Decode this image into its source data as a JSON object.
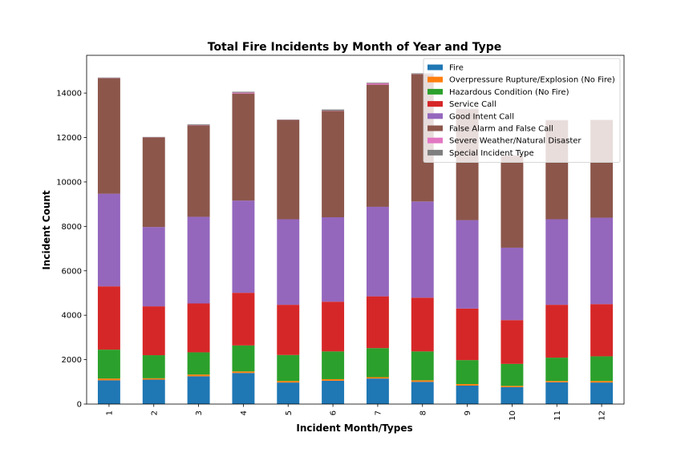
{
  "chart_data": {
    "type": "bar",
    "stacked": true,
    "title": "Total Fire Incidents by Month of Year and Type",
    "xlabel": "Incident Month/Types",
    "ylabel": "Incident Count",
    "ylim": [
      0,
      15700
    ],
    "yticks": [
      0,
      2000,
      4000,
      6000,
      8000,
      10000,
      12000,
      14000
    ],
    "ytick_labels": [
      "0",
      "2000",
      "4000",
      "6000",
      "8000",
      "10000",
      "12000",
      "14000"
    ],
    "categories": [
      "1",
      "2",
      "3",
      "4",
      "5",
      "6",
      "7",
      "8",
      "9",
      "10",
      "11",
      "12"
    ],
    "legend_position": "top-right",
    "series": [
      {
        "name": "Fire",
        "color": "#1f77b4",
        "values": [
          1070,
          1100,
          1250,
          1400,
          970,
          1050,
          1150,
          1000,
          830,
          760,
          980,
          970
        ]
      },
      {
        "name": "Overpressure Rupture/Explosion (No Fire)",
        "color": "#ff7f0e",
        "values": [
          80,
          60,
          80,
          70,
          70,
          70,
          60,
          70,
          70,
          60,
          60,
          70
        ]
      },
      {
        "name": "Hazardous Condition (No Fire)",
        "color": "#2ca02c",
        "values": [
          1300,
          1040,
          1000,
          1170,
          1170,
          1250,
          1310,
          1300,
          1080,
          990,
          1050,
          1110
        ]
      },
      {
        "name": "Service Call",
        "color": "#d62728",
        "values": [
          2850,
          2200,
          2200,
          2370,
          2260,
          2240,
          2330,
          2420,
          2320,
          1970,
          2380,
          2350
        ]
      },
      {
        "name": "Good Intent Call",
        "color": "#9467bd",
        "values": [
          4170,
          3570,
          3900,
          4150,
          3850,
          3800,
          4030,
          4330,
          3980,
          3260,
          3850,
          3890
        ]
      },
      {
        "name": "False Alarm and False Call",
        "color": "#8c564b",
        "values": [
          5200,
          4040,
          4120,
          4820,
          4470,
          4790,
          5500,
          5730,
          4990,
          4140,
          4450,
          4390
        ]
      },
      {
        "name": "Severe Weather/Natural Disaster",
        "color": "#e377c2",
        "values": [
          10,
          5,
          10,
          40,
          5,
          10,
          60,
          10,
          5,
          5,
          5,
          5
        ]
      },
      {
        "name": "Special Incident Type",
        "color": "#7f7f7f",
        "values": [
          20,
          10,
          30,
          40,
          15,
          50,
          30,
          30,
          20,
          20,
          15,
          15
        ]
      }
    ]
  }
}
